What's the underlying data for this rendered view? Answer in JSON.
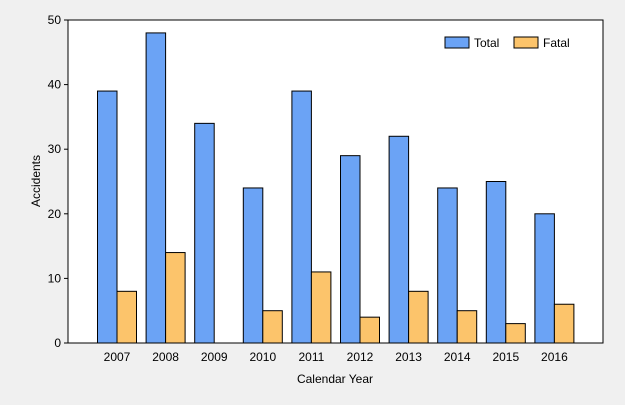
{
  "chart_data": {
    "type": "bar",
    "title": "",
    "xlabel": "Calendar Year",
    "ylabel": "Accidents",
    "ylim": [
      0,
      50
    ],
    "yticks": [
      0,
      10,
      20,
      30,
      40,
      50
    ],
    "grid": false,
    "legend_position": "top-right",
    "categories": [
      "2007",
      "2008",
      "2009",
      "2010",
      "2011",
      "2012",
      "2013",
      "2014",
      "2015",
      "2016"
    ],
    "series": [
      {
        "name": "Total",
        "color": "#6ba3f5",
        "values": [
          39,
          48,
          34,
          24,
          39,
          29,
          32,
          24,
          25,
          20
        ]
      },
      {
        "name": "Fatal",
        "color": "#fcc46b",
        "values": [
          8,
          14,
          0,
          5,
          11,
          4,
          8,
          5,
          3,
          6
        ]
      }
    ]
  }
}
